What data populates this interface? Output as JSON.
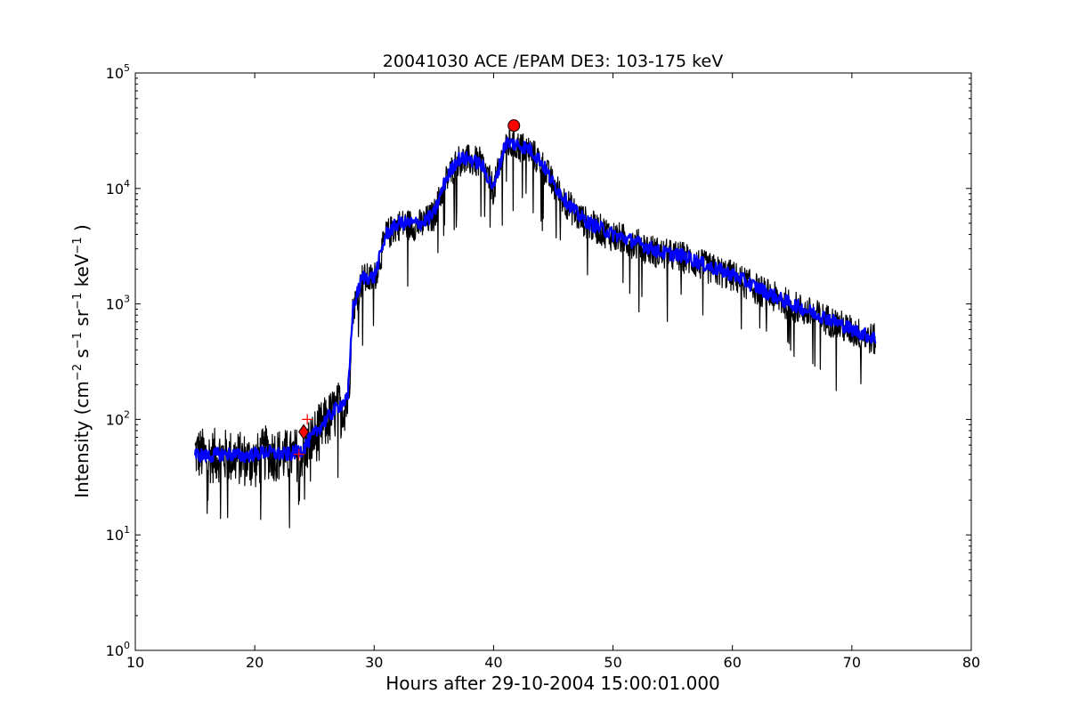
{
  "chart_data": {
    "type": "line",
    "title": "20041030 ACE /EPAM DE3: 103-175 keV",
    "xlabel": "Hours after 29-10-2004 15:00:01.000",
    "ylabel": "Intensity (cm⁻² s⁻¹ sr⁻¹ keV⁻¹ )",
    "ylabel_parts": [
      "Intensity (cm",
      "−2",
      "s",
      "−1",
      "sr",
      "−1",
      "keV",
      "−1",
      ")"
    ],
    "xlim": [
      10,
      80
    ],
    "ylim": [
      1,
      100000
    ],
    "yscale": "log",
    "grid": false,
    "x_ticks": [
      10,
      20,
      30,
      40,
      50,
      60,
      70,
      80
    ],
    "x_tick_labels": [
      "10",
      "20",
      "30",
      "40",
      "50",
      "60",
      "70",
      "80"
    ],
    "y_ticks": [
      1,
      10,
      100,
      1000,
      10000,
      100000
    ],
    "y_tick_labels": [
      {
        "base": "10",
        "exp": "0"
      },
      {
        "base": "10",
        "exp": "1"
      },
      {
        "base": "10",
        "exp": "2"
      },
      {
        "base": "10",
        "exp": "3"
      },
      {
        "base": "10",
        "exp": "4"
      },
      {
        "base": "10",
        "exp": "5"
      }
    ],
    "series": [
      {
        "color": "#000000",
        "style": "raw-noisy",
        "x": [
          15,
          16,
          17,
          18,
          19,
          20,
          21,
          22,
          23,
          24,
          25,
          26,
          27,
          27.8,
          28.2,
          29,
          30,
          31,
          32,
          33,
          34,
          35,
          36,
          37,
          38,
          39,
          40,
          41,
          42,
          43,
          44,
          45,
          46,
          47,
          48,
          49,
          50,
          52,
          54,
          56,
          58,
          60,
          62,
          64,
          66,
          68,
          70,
          72
        ],
        "y": [
          55,
          50,
          52,
          50,
          48,
          45,
          55,
          52,
          50,
          55,
          75,
          100,
          130,
          150,
          900,
          1700,
          1700,
          4000,
          5000,
          5000,
          5000,
          6000,
          12000,
          18000,
          18000,
          17000,
          10000,
          25000,
          24000,
          22000,
          17000,
          11000,
          8000,
          6000,
          5000,
          4500,
          4000,
          3400,
          2800,
          2600,
          2100,
          1800,
          1400,
          1100,
          900,
          750,
          600,
          500
        ]
      },
      {
        "color": "#0000ff",
        "style": "smoothed",
        "x": [
          15,
          16,
          17,
          18,
          19,
          20,
          21,
          22,
          23,
          24,
          25,
          26,
          27,
          27.8,
          28.2,
          29,
          30,
          31,
          32,
          33,
          34,
          35,
          36,
          37,
          38,
          39,
          40,
          41,
          42,
          43,
          44,
          45,
          46,
          47,
          48,
          49,
          50,
          52,
          54,
          56,
          58,
          60,
          62,
          64,
          66,
          68,
          70,
          72
        ],
        "y": [
          50,
          48,
          50,
          50,
          48,
          50,
          52,
          50,
          50,
          55,
          75,
          100,
          130,
          150,
          900,
          1700,
          1700,
          4000,
          5000,
          5000,
          5000,
          6000,
          12000,
          18000,
          18000,
          16000,
          10000,
          25000,
          24000,
          22000,
          17000,
          11000,
          8000,
          6000,
          5000,
          4500,
          4000,
          3400,
          2800,
          2600,
          2100,
          1800,
          1400,
          1100,
          900,
          750,
          600,
          500
        ]
      }
    ],
    "markers": [
      {
        "type": "circle",
        "color": "#ff0000",
        "x": 41.7,
        "y": 35000
      },
      {
        "type": "diamond",
        "color": "#ff0000",
        "x": 24.1,
        "y": 78
      },
      {
        "type": "plus",
        "color": "#ff0000",
        "x": 24.4,
        "y": 100
      },
      {
        "type": "plus",
        "color": "#ff0000",
        "x": 23.7,
        "y": 50
      }
    ]
  }
}
